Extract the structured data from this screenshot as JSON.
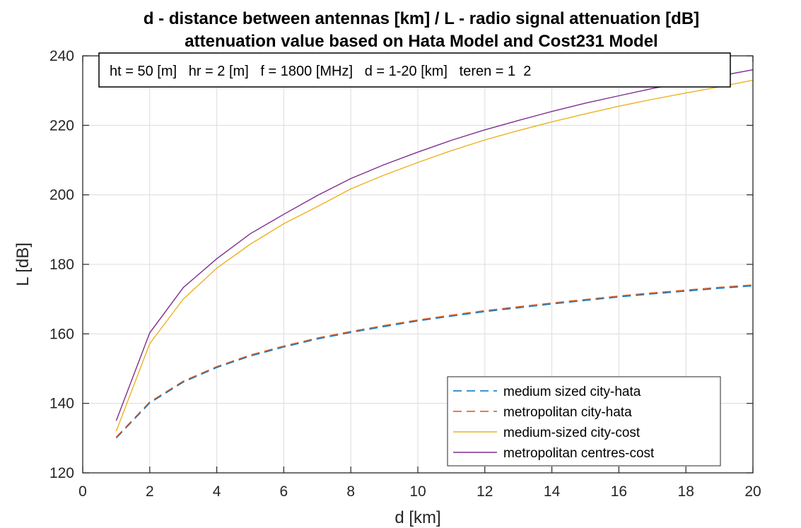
{
  "chart_data": {
    "type": "line",
    "title": [
      "d - distance between antennas [km] / L - radio signal attenuation [dB]",
      "attenuation value based on Hata Model and Cost231 Model"
    ],
    "xlabel": "d [km]",
    "ylabel": "L [dB]",
    "xlim": [
      0,
      20
    ],
    "ylim": [
      120,
      240
    ],
    "xticks": [
      0,
      2,
      4,
      6,
      8,
      10,
      12,
      14,
      16,
      18,
      20
    ],
    "yticks": [
      120,
      140,
      160,
      180,
      200,
      220,
      240
    ],
    "grid": true,
    "legend_position": "bottom-right",
    "annotation": "ht = 50 [m]   hr = 2 [m]   f = 1800 [MHz]   d = 1-20 [km]   teren = 1  2",
    "x": [
      1,
      2,
      3,
      4,
      5,
      6,
      7,
      8,
      9,
      10,
      11,
      12,
      13,
      14,
      15,
      16,
      17,
      18,
      19,
      20
    ],
    "series": [
      {
        "name": "medium sized city-hata",
        "color": "#0072BD",
        "dash": "dashed",
        "values": [
          130.0,
          140.1,
          146.1,
          150.3,
          153.6,
          156.2,
          158.5,
          160.4,
          162.1,
          163.7,
          165.1,
          166.4,
          167.5,
          168.6,
          169.6,
          170.6,
          171.5,
          172.3,
          173.1,
          173.8
        ]
      },
      {
        "name": "metropolitan city-hata",
        "color": "#D95319",
        "dash": "dashed",
        "values": [
          130.3,
          140.4,
          146.4,
          150.6,
          153.9,
          156.5,
          158.8,
          160.7,
          162.4,
          164.0,
          165.4,
          166.7,
          167.8,
          168.9,
          169.9,
          170.9,
          171.8,
          172.6,
          173.4,
          174.1
        ]
      },
      {
        "name": "medium-sized city-cost",
        "color": "#EDB120",
        "dash": "solid",
        "values": [
          132.0,
          157.2,
          170.0,
          178.9,
          185.8,
          191.7,
          196.6,
          201.7,
          205.7,
          209.3,
          212.7,
          215.8,
          218.5,
          221.0,
          223.3,
          225.5,
          227.5,
          229.3,
          231.1,
          233.0
        ]
      },
      {
        "name": "metropolitan centres-cost",
        "color": "#7E2F8E",
        "dash": "solid",
        "values": [
          135.0,
          160.3,
          173.3,
          181.6,
          188.8,
          194.4,
          199.8,
          204.7,
          208.7,
          212.3,
          215.7,
          218.7,
          221.4,
          224.0,
          226.4,
          228.5,
          230.6,
          232.4,
          234.2,
          236.0
        ]
      }
    ]
  }
}
